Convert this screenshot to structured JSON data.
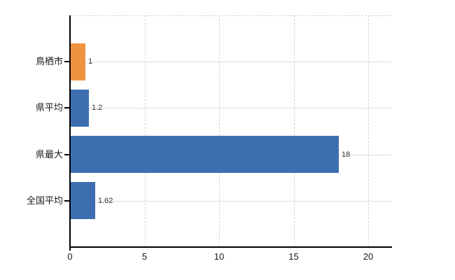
{
  "chart_data": {
    "type": "bar",
    "orientation": "horizontal",
    "categories": [
      "鳥栖市",
      "県平均",
      "県最大",
      "全国平均"
    ],
    "values": [
      1,
      1.2,
      18,
      1.62
    ],
    "value_labels": [
      "1",
      "1.2",
      "18",
      "1.62"
    ],
    "bar_colors": [
      "#ee9440",
      "#3d6eb0",
      "#3d6eb0",
      "#3d6eb0"
    ],
    "x_ticks": [
      0,
      5,
      10,
      15,
      20
    ],
    "x_tick_labels": [
      "0",
      "5",
      "10",
      "15",
      "20"
    ],
    "xlim": [
      0,
      21.5
    ],
    "grid": true,
    "legend": "none",
    "data_labels": "outside-end"
  },
  "colors": {
    "orange_bar": "#ee9440",
    "blue_bar": "#3d6eb0",
    "axis": "#000000",
    "gridline_dashed": "#d4d4d4",
    "gridline_solid": "#dcdcdc",
    "label_text": "#1a1a1a",
    "value_text": "#333333",
    "background": "#ffffff"
  }
}
